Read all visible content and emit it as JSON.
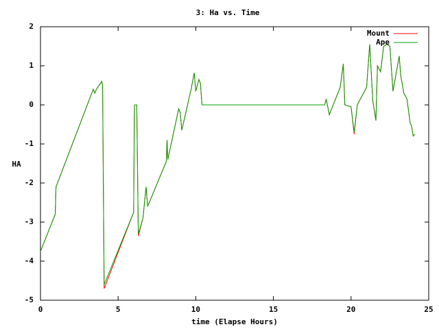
{
  "chart_data": {
    "type": "line",
    "title": "3: Ha vs. Time",
    "x_label": "time (Elapse Hours)",
    "y_label": "HA",
    "legend_position": "top-right",
    "xlim": [
      0,
      25
    ],
    "xticks": [
      0,
      5,
      10,
      15,
      20,
      25
    ],
    "ylim": [
      -5,
      2
    ],
    "yticks": [
      -5,
      -4,
      -3,
      -2,
      -1,
      0,
      1,
      2
    ],
    "x": [
      0,
      0.95,
      1.0,
      3.4,
      3.5,
      3.6,
      3.95,
      4.0,
      4.1,
      6.0,
      6.05,
      6.2,
      6.3,
      6.6,
      6.8,
      6.9,
      8.1,
      8.15,
      8.2,
      8.9,
      9.0,
      9.1,
      9.7,
      9.9,
      10.0,
      10.2,
      10.3,
      10.4,
      18.3,
      18.4,
      18.6,
      19.3,
      19.5,
      19.6,
      20.0,
      20.2,
      20.4,
      21.0,
      21.2,
      21.4,
      21.6,
      21.7,
      21.9,
      22.1,
      22.3,
      22.5,
      22.7,
      23.1,
      23.2,
      23.4,
      23.6,
      23.8,
      23.9,
      24.0,
      24.1
    ],
    "series": [
      {
        "name": "Mount",
        "color": "#ff0000",
        "values": [
          -3.75,
          -2.8,
          -2.1,
          0.4,
          0.3,
          0.4,
          0.6,
          0.5,
          -4.7,
          -2.75,
          0,
          0,
          -3.35,
          -2.9,
          -2.1,
          -2.6,
          -1.45,
          -0.9,
          -1.4,
          -0.1,
          -0.2,
          -0.65,
          0.4,
          0.82,
          0.35,
          0.65,
          0.55,
          0,
          0,
          0.15,
          -0.25,
          0.45,
          1.05,
          0,
          -0.05,
          -0.75,
          0,
          0.45,
          1.55,
          0.1,
          -0.4,
          1.0,
          0.85,
          1.5,
          1.55,
          1.5,
          0.35,
          1.25,
          0.75,
          0.3,
          0.15,
          -0.45,
          -0.55,
          -0.8,
          -0.75
        ]
      },
      {
        "name": "Ape",
        "color": "#00a000",
        "values": [
          -3.75,
          -2.8,
          -2.1,
          0.4,
          0.3,
          0.4,
          0.6,
          0.5,
          -4.6,
          -2.75,
          0,
          0,
          -3.3,
          -2.9,
          -2.1,
          -2.6,
          -1.45,
          -0.9,
          -1.4,
          -0.1,
          -0.2,
          -0.65,
          0.4,
          0.82,
          0.35,
          0.65,
          0.55,
          0,
          0,
          0.15,
          -0.25,
          0.45,
          1.05,
          0,
          -0.05,
          -0.7,
          0,
          0.45,
          1.55,
          0.1,
          -0.4,
          1.0,
          0.85,
          1.5,
          1.55,
          1.5,
          0.35,
          1.25,
          0.75,
          0.3,
          0.15,
          -0.45,
          -0.55,
          -0.8,
          -0.75
        ]
      }
    ]
  }
}
